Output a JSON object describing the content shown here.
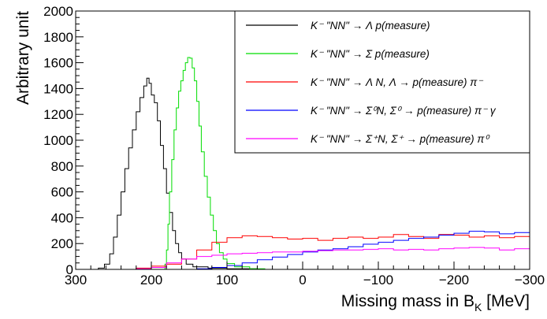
{
  "chart_data": {
    "type": "line",
    "xlabel": "Missing mass in B_K [MeV]",
    "ylabel": "Arbitrary unit",
    "xlim": [
      300,
      -300
    ],
    "ylim": [
      0,
      2000
    ],
    "x_ticks": [
      "300",
      "200",
      "100",
      "0",
      "−100",
      "−200",
      "−300"
    ],
    "y_ticks": [
      "0",
      "200",
      "400",
      "600",
      "800",
      "1000",
      "1200",
      "1400",
      "1600",
      "1800",
      "2000"
    ],
    "legend_position": "top-right",
    "grid": false,
    "series": [
      {
        "name": "K⁻ \"NN\" → Λ p(measure)",
        "color": "#000000",
        "points": [
          [
            285,
            0
          ],
          [
            270,
            10
          ],
          [
            262,
            40
          ],
          [
            255,
            120
          ],
          [
            250,
            250
          ],
          [
            245,
            420
          ],
          [
            240,
            600
          ],
          [
            235,
            780
          ],
          [
            230,
            940
          ],
          [
            225,
            1080
          ],
          [
            220,
            1220
          ],
          [
            215,
            1330
          ],
          [
            210,
            1420
          ],
          [
            206,
            1480
          ],
          [
            203,
            1440
          ],
          [
            200,
            1350
          ],
          [
            196,
            1290
          ],
          [
            192,
            1150
          ],
          [
            188,
            960
          ],
          [
            184,
            780
          ],
          [
            180,
            590
          ],
          [
            176,
            440
          ],
          [
            172,
            300
          ],
          [
            168,
            200
          ],
          [
            164,
            130
          ],
          [
            160,
            80
          ],
          [
            154,
            40
          ],
          [
            145,
            20
          ],
          [
            125,
            10
          ],
          [
            100,
            5
          ],
          [
            60,
            0
          ],
          [
            -300,
            0
          ]
        ]
      },
      {
        "name": "K⁻ \"NN\" → Σ p(measure)",
        "color": "#00dd00",
        "points": [
          [
            300,
            0
          ],
          [
            185,
            0
          ],
          [
            182,
            40
          ],
          [
            180,
            150
          ],
          [
            178,
            350
          ],
          [
            176,
            600
          ],
          [
            173,
            850
          ],
          [
            170,
            1080
          ],
          [
            167,
            1250
          ],
          [
            164,
            1380
          ],
          [
            161,
            1460
          ],
          [
            158,
            1540
          ],
          [
            155,
            1600
          ],
          [
            152,
            1640
          ],
          [
            149,
            1635
          ],
          [
            146,
            1560
          ],
          [
            143,
            1460
          ],
          [
            140,
            1300
          ],
          [
            137,
            1110
          ],
          [
            134,
            910
          ],
          [
            130,
            720
          ],
          [
            126,
            560
          ],
          [
            122,
            420
          ],
          [
            118,
            300
          ],
          [
            114,
            200
          ],
          [
            110,
            130
          ],
          [
            105,
            80
          ],
          [
            100,
            45
          ],
          [
            90,
            20
          ],
          [
            70,
            5
          ],
          [
            50,
            0
          ],
          [
            -300,
            0
          ]
        ]
      },
      {
        "name": "K⁻ \"NN\" → Λ N, Λ → p(measure) π⁻",
        "color": "#ff0000",
        "points": [
          [
            300,
            0
          ],
          [
            240,
            0
          ],
          [
            220,
            10
          ],
          [
            200,
            25
          ],
          [
            180,
            40
          ],
          [
            160,
            80
          ],
          [
            140,
            150
          ],
          [
            120,
            210
          ],
          [
            100,
            245
          ],
          [
            80,
            260
          ],
          [
            60,
            255
          ],
          [
            40,
            245
          ],
          [
            20,
            235
          ],
          [
            0,
            240
          ],
          [
            -20,
            225
          ],
          [
            -40,
            240
          ],
          [
            -60,
            250
          ],
          [
            -80,
            240
          ],
          [
            -100,
            250
          ],
          [
            -120,
            270
          ],
          [
            -140,
            255
          ],
          [
            -160,
            240
          ],
          [
            -180,
            270
          ],
          [
            -200,
            265
          ],
          [
            -220,
            250
          ],
          [
            -240,
            260
          ],
          [
            -260,
            245
          ],
          [
            -280,
            255
          ],
          [
            -300,
            250
          ]
        ]
      },
      {
        "name": "K⁻ \"NN\" → Σ⁰N, Σ⁰ → p(measure) π⁻ γ",
        "color": "#0000ff",
        "points": [
          [
            300,
            0
          ],
          [
            160,
            0
          ],
          [
            140,
            5
          ],
          [
            120,
            15
          ],
          [
            100,
            30
          ],
          [
            80,
            50
          ],
          [
            60,
            75
          ],
          [
            40,
            95
          ],
          [
            20,
            115
          ],
          [
            0,
            135
          ],
          [
            -20,
            150
          ],
          [
            -40,
            160
          ],
          [
            -60,
            175
          ],
          [
            -80,
            195
          ],
          [
            -100,
            210
          ],
          [
            -120,
            225
          ],
          [
            -140,
            240
          ],
          [
            -160,
            250
          ],
          [
            -180,
            265
          ],
          [
            -200,
            280
          ],
          [
            -220,
            295
          ],
          [
            -240,
            290
          ],
          [
            -260,
            275
          ],
          [
            -280,
            285
          ],
          [
            -300,
            270
          ]
        ]
      },
      {
        "name": "K⁻ \"NN\" → Σ⁺N, Σ⁺ → p(measure) π⁰",
        "color": "#ff00ff",
        "points": [
          [
            300,
            0
          ],
          [
            240,
            0
          ],
          [
            220,
            5
          ],
          [
            200,
            15
          ],
          [
            180,
            50
          ],
          [
            160,
            80
          ],
          [
            140,
            100
          ],
          [
            120,
            110
          ],
          [
            100,
            120
          ],
          [
            80,
            125
          ],
          [
            60,
            130
          ],
          [
            40,
            135
          ],
          [
            20,
            135
          ],
          [
            0,
            140
          ],
          [
            -20,
            145
          ],
          [
            -40,
            150
          ],
          [
            -60,
            150
          ],
          [
            -80,
            155
          ],
          [
            -100,
            160
          ],
          [
            -120,
            150
          ],
          [
            -140,
            155
          ],
          [
            -160,
            150
          ],
          [
            -180,
            160
          ],
          [
            -200,
            165
          ],
          [
            -220,
            170
          ],
          [
            -240,
            165
          ],
          [
            -260,
            150
          ],
          [
            -280,
            160
          ],
          [
            -300,
            155
          ]
        ]
      }
    ]
  }
}
